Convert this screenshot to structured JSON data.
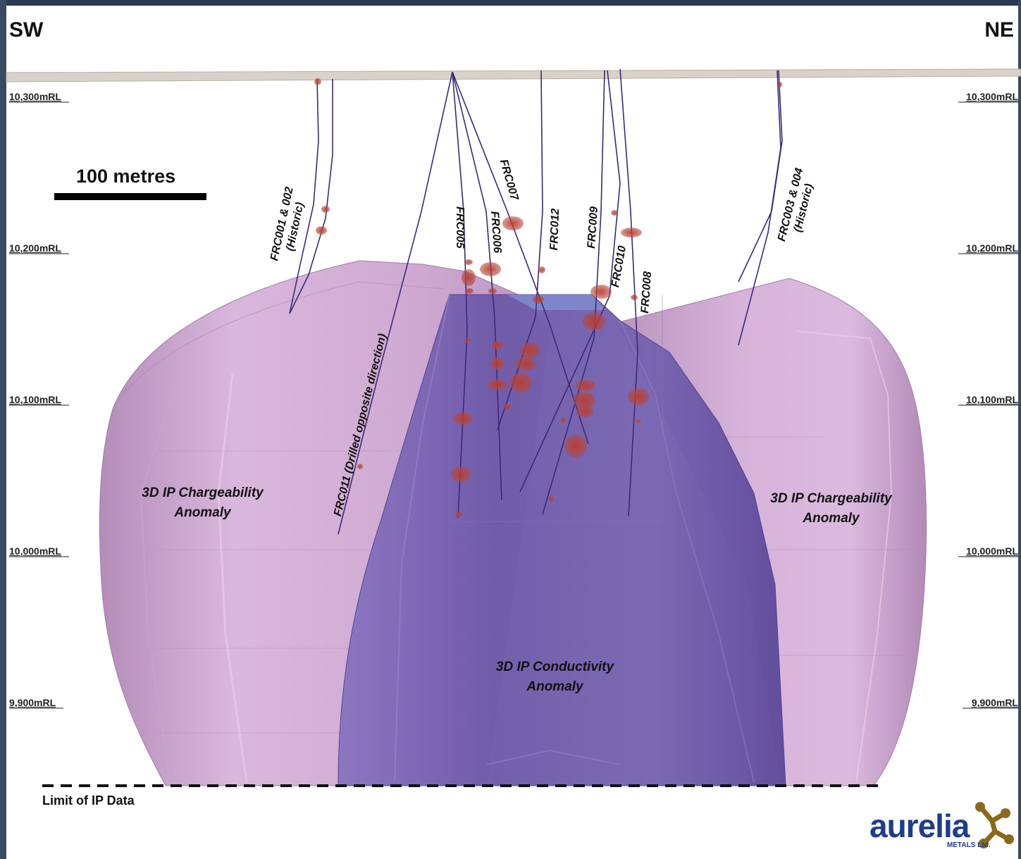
{
  "directions": {
    "left": "SW",
    "right": "NE"
  },
  "rl_levels": [
    "10,300mRL",
    "10,200mRL",
    "10,100mRL",
    "10,000mRL",
    "9,900mRL"
  ],
  "scale_bar": {
    "label": "100 metres"
  },
  "drill_holes": [
    {
      "id": "frc001-002",
      "label": "FRC001 & 002\n(Historic)"
    },
    {
      "id": "frc011",
      "label": "FRC011 (Drilled opposite direction)"
    },
    {
      "id": "frc005",
      "label": "FRC005"
    },
    {
      "id": "frc006",
      "label": "FRC006"
    },
    {
      "id": "frc007",
      "label": "FRC007"
    },
    {
      "id": "frc012",
      "label": "FRC012"
    },
    {
      "id": "frc009",
      "label": "FRC009"
    },
    {
      "id": "frc010",
      "label": "FRC010"
    },
    {
      "id": "frc008",
      "label": "FRC008"
    },
    {
      "id": "frc003-004",
      "label": "FRC003 & 004\n(Historic)"
    }
  ],
  "anomalies": {
    "chargeability_left": "3D IP Chargeability\nAnomaly",
    "chargeability_right": "3D IP Chargeability\nAnomaly",
    "conductivity": "3D IP Conductivity\nAnomaly"
  },
  "limit_label": "Limit of IP Data",
  "logo": {
    "word": "aurelia",
    "sub": "METALS Ltd."
  },
  "colors": {
    "chargeability": "#c9a3cf",
    "conductivity": "#6a58a8",
    "drill_trace": "#3a2a7a",
    "mineralisation": "#b8403a",
    "logo_blue": "#1f3d8c",
    "logo_gold": "#8a6a1a"
  }
}
